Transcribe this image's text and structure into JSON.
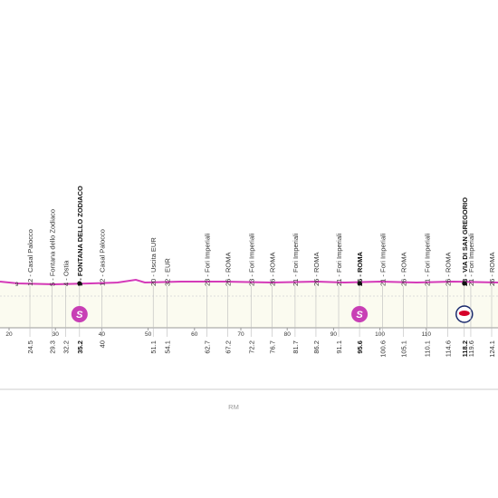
{
  "points": [
    {
      "km": 24.5,
      "label": "12 - Casal Palocco"
    },
    {
      "km": 29.3,
      "label": "5 - Fontana dello Zodiaco"
    },
    {
      "km": 32.2,
      "label": "4 - Ostia"
    },
    {
      "km": 35.2,
      "label": "5 - FONTANA DELLO ZODIACO",
      "bold": true,
      "sprint": true
    },
    {
      "km": 40.0,
      "label": "12 - Casal Palocco"
    },
    {
      "km": 51.1,
      "label": "20 - Uscita EUR"
    },
    {
      "km": 54.1,
      "label": "32 - EUR"
    },
    {
      "km": 62.7,
      "label": "23 - Fori Imperiali"
    },
    {
      "km": 67.2,
      "label": "26 - ROMA"
    },
    {
      "km": 72.2,
      "label": "23 - Fori Imperiali"
    },
    {
      "km": 76.7,
      "label": "26 - ROMA"
    },
    {
      "km": 81.7,
      "label": "21 - Fori Imperiali"
    },
    {
      "km": 86.2,
      "label": "26 - ROMA"
    },
    {
      "km": 91.1,
      "label": "21 - Fori Imperiali"
    },
    {
      "km": 95.6,
      "label": "26 - ROMA",
      "bold": true,
      "sprint": true
    },
    {
      "km": 100.6,
      "label": "21 - Fori Imperiali"
    },
    {
      "km": 105.1,
      "label": "26 - ROMA"
    },
    {
      "km": 110.1,
      "label": "21 - Fori Imperiali"
    },
    {
      "km": 114.6,
      "label": "26 - ROMA"
    },
    {
      "km": 118.2,
      "label": "23 - VIA DI SAN GREGORIO",
      "bold": true,
      "redbull": true
    },
    {
      "km": 119.6,
      "label": "21 - Fori Imperiali"
    },
    {
      "km": 124.1,
      "label": "26 - ROMA"
    }
  ],
  "km_ticks": [
    20,
    30,
    40,
    50,
    60,
    70,
    80,
    90,
    100,
    110
  ],
  "sprint_symbol": "S",
  "marker": "9",
  "province": "RM"
}
